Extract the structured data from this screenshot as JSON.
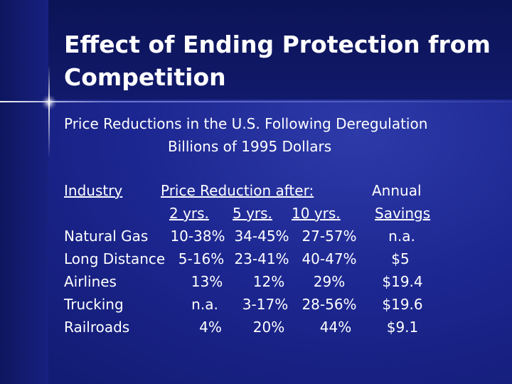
{
  "slide": {
    "title": "Effect of Ending Protection from Competition",
    "subtitle": "Price Reductions in the U.S. Following Deregulation",
    "units": "Billions of 1995 Dollars"
  },
  "table": {
    "header": {
      "industry": "Industry",
      "price_reduction": "Price Reduction after:",
      "annual": "Annual",
      "col_2yrs": "2 yrs.",
      "col_5yrs": "5 yrs.",
      "col_10yrs": "10 yrs.",
      "savings": "Savings"
    },
    "rows": [
      {
        "industry": "Natural Gas",
        "y2": "10-38%",
        "y5": "34-45%",
        "y10": "27-57%",
        "savings": "n.a."
      },
      {
        "industry": "Long Distance",
        "y2": "5-16%",
        "y5": "23-41%",
        "y10": "40-47%",
        "savings": "$5"
      },
      {
        "industry": "Airlines",
        "y2": "13%",
        "y5": "12%",
        "y10": "29%",
        "savings": "$19.4"
      },
      {
        "industry": "Trucking",
        "y2": "n.a.",
        "y5": "3-17%",
        "y10": "28-56%",
        "savings": "$19.6"
      },
      {
        "industry": "Railroads",
        "y2": "4%",
        "y5": "20%",
        "y10": "44%",
        "savings": "$9.1"
      }
    ]
  }
}
